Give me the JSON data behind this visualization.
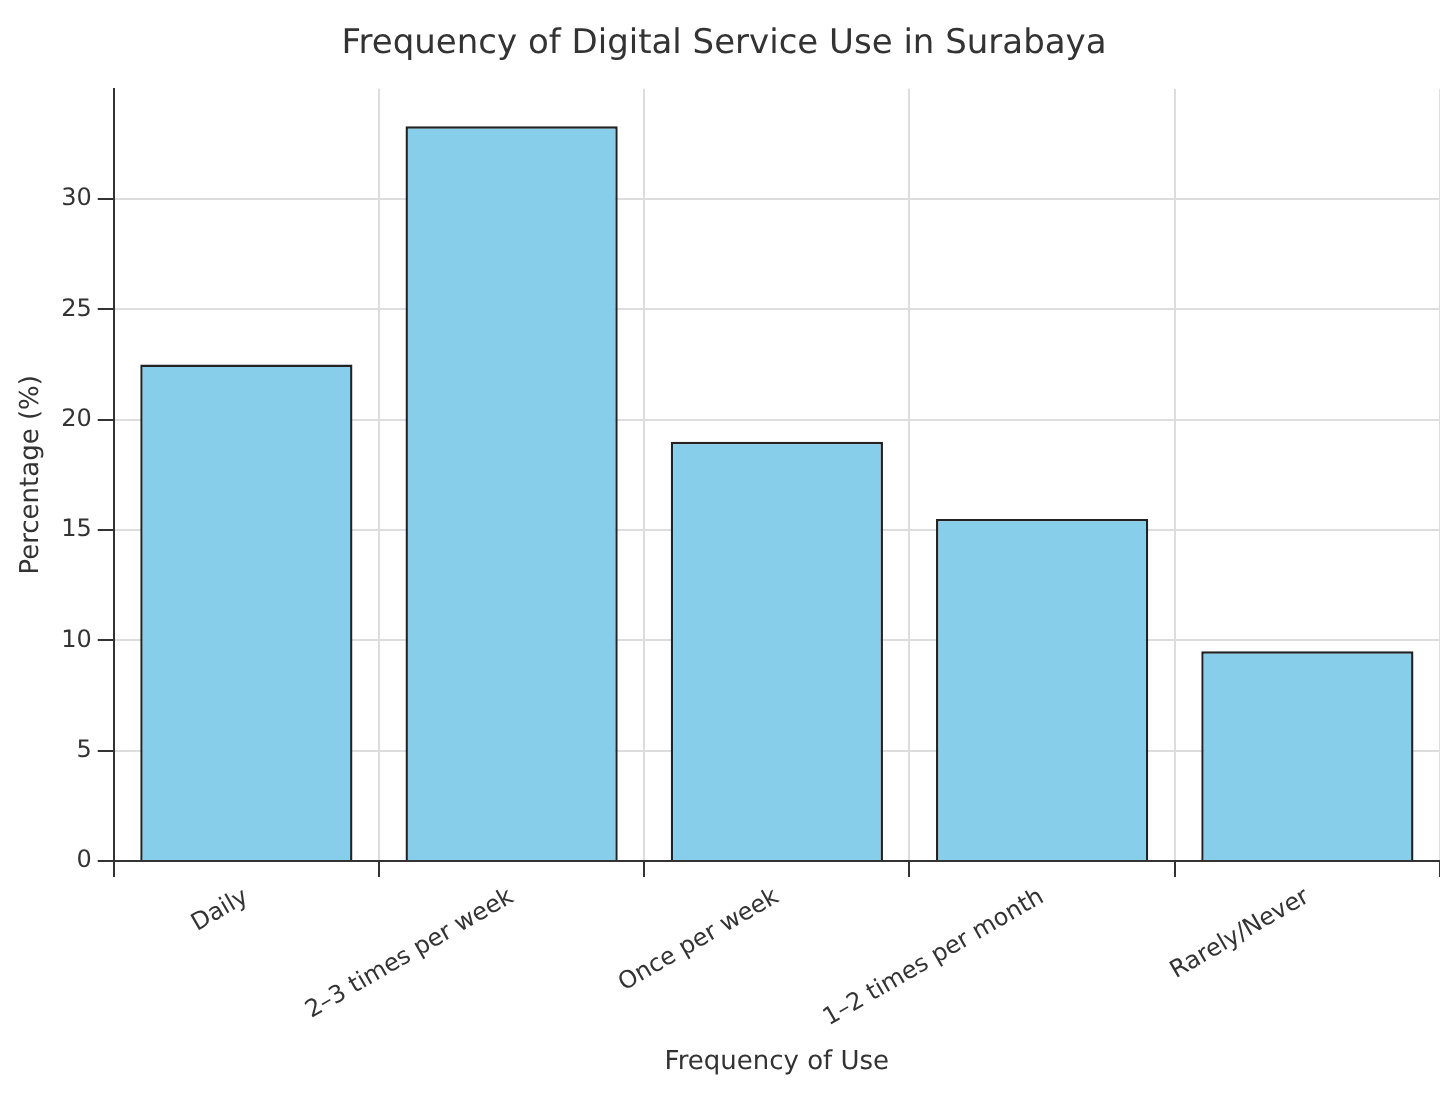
{
  "chart_data": {
    "type": "bar",
    "title": "Frequency of Digital Service Use in Surabaya",
    "xlabel": "Frequency of Use",
    "ylabel": "Percentage (%)",
    "categories": [
      "Daily",
      "2–3 times per week",
      "Once per week",
      "1–2 times per month",
      "Rarely/Never"
    ],
    "values": [
      22.5,
      33.3,
      19.0,
      15.5,
      9.5
    ],
    "color": "#87ceeb",
    "ylim": [
      0,
      35
    ],
    "yticks": [
      0,
      5,
      10,
      15,
      20,
      25,
      30
    ],
    "grid": true
  }
}
